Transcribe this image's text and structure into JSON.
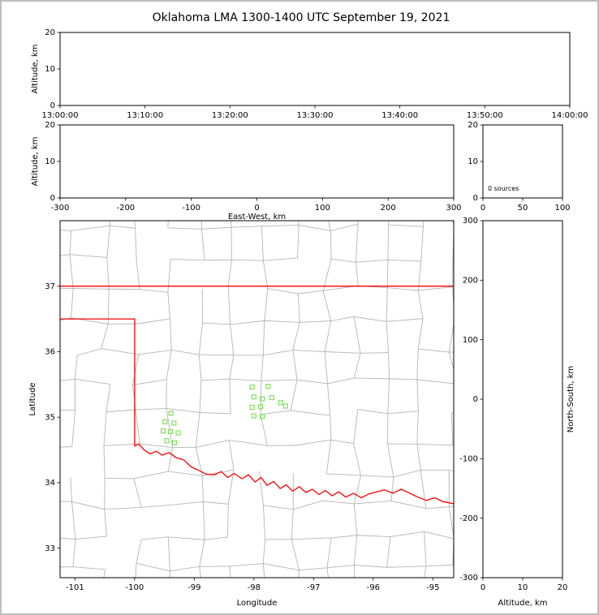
{
  "title": "Oklahoma LMA 1300-1400 UTC September 19, 2021",
  "colors": {
    "state_border_red": "#ff0000",
    "county_gray": "#b5b5b5",
    "station_green": "#82e060",
    "axes_black": "#000000",
    "frame_gray": "#bdbdbd"
  },
  "panels": {
    "time_height": {
      "x_ticks": [
        "13:00:00",
        "13:10:00",
        "13:20:00",
        "13:30:00",
        "13:40:00",
        "13:50:00",
        "14:00:00"
      ],
      "y_ticks": [
        0,
        10,
        20
      ],
      "y_label": "Altitude, km"
    },
    "ew_height": {
      "x_ticks": [
        -300,
        -200,
        -100,
        0,
        100,
        200,
        300
      ],
      "x_label": "East-West, km",
      "y_ticks": [
        0,
        10,
        20
      ],
      "y_label": "Altitude, km"
    },
    "histogram": {
      "x_ticks": [
        0,
        50,
        100
      ],
      "y_ticks": [
        0,
        10,
        20
      ],
      "annotation": "0 sources"
    },
    "plan_view": {
      "x_ticks": [
        -101,
        -100,
        -99,
        -98,
        -97,
        -96,
        -95
      ],
      "x_label": "Longitude",
      "y_ticks": [
        33,
        34,
        35,
        36,
        37
      ],
      "y_label": "Latitude",
      "lon_range": [
        -101.25,
        -94.65
      ],
      "lat_range": [
        32.55,
        38.0
      ]
    },
    "ns_height": {
      "x_ticks": [
        0,
        10,
        20
      ],
      "x_label": "Altitude, km",
      "y_ticks": [
        -300,
        -200,
        -100,
        0,
        100,
        200,
        300
      ],
      "y_label": "North-South, km"
    }
  },
  "chart_data": [
    {
      "type": "scatter",
      "panel": "time_height",
      "x_range": [
        "13:00:00",
        "14:00:00"
      ],
      "ylim": [
        0,
        20
      ],
      "points": [],
      "note": "empty panel - no sources plotted"
    },
    {
      "type": "scatter",
      "panel": "ew_height",
      "x_range": [
        -300,
        300
      ],
      "ylim": [
        0,
        20
      ],
      "points": [],
      "note": "empty panel - no sources plotted"
    },
    {
      "type": "bar",
      "panel": "histogram",
      "x_range": [
        0,
        100
      ],
      "ylim": [
        0,
        20
      ],
      "values": [],
      "annotation": "0 sources"
    },
    {
      "type": "scatter",
      "panel": "plan_view",
      "xlabel": "Longitude",
      "ylabel": "Latitude",
      "xlim": [
        -101.25,
        -94.65
      ],
      "ylim": [
        32.55,
        38.0
      ],
      "series": [
        {
          "name": "lma-station-locations",
          "marker": "open-square",
          "color": "#82e060",
          "points": [
            [
              -98.03,
              35.46
            ],
            [
              -97.76,
              35.47
            ],
            [
              -98.0,
              35.31
            ],
            [
              -97.86,
              35.28
            ],
            [
              -97.7,
              35.3
            ],
            [
              -98.03,
              35.15
            ],
            [
              -97.89,
              35.16
            ],
            [
              -98.0,
              35.02
            ],
            [
              -97.86,
              35.01
            ],
            [
              -97.55,
              35.22
            ],
            [
              -97.47,
              35.17
            ],
            [
              -99.39,
              35.06
            ],
            [
              -99.49,
              34.93
            ],
            [
              -99.34,
              34.91
            ],
            [
              -99.52,
              34.79
            ],
            [
              -99.4,
              34.78
            ],
            [
              -99.27,
              34.76
            ],
            [
              -99.46,
              34.64
            ],
            [
              -99.33,
              34.61
            ]
          ]
        }
      ],
      "overlays": {
        "county_borders": {
          "color": "#b5b5b5",
          "style": "procedural-grid"
        },
        "state_border": {
          "color": "#ff0000",
          "paths": {
            "north_border": [
              [
                -101.25,
                37.0
              ],
              [
                -94.65,
                37.0
              ]
            ],
            "panhandle_west": [
              [
                -101.25,
                36.5
              ],
              [
                -100.0,
                36.5
              ],
              [
                -100.0,
                34.56
              ]
            ],
            "red_river_south": [
              [
                -100.0,
                34.56
              ],
              [
                -99.93,
                34.59
              ],
              [
                -99.84,
                34.5
              ],
              [
                -99.74,
                34.44
              ],
              [
                -99.64,
                34.48
              ],
              [
                -99.54,
                34.42
              ],
              [
                -99.42,
                34.46
              ],
              [
                -99.3,
                34.38
              ],
              [
                -99.18,
                34.35
              ],
              [
                -99.05,
                34.24
              ],
              [
                -98.93,
                34.19
              ],
              [
                -98.8,
                34.13
              ],
              [
                -98.66,
                34.12
              ],
              [
                -98.55,
                34.17
              ],
              [
                -98.44,
                34.08
              ],
              [
                -98.33,
                34.14
              ],
              [
                -98.2,
                34.06
              ],
              [
                -98.09,
                34.12
              ],
              [
                -97.98,
                34.01
              ],
              [
                -97.88,
                34.08
              ],
              [
                -97.78,
                33.96
              ],
              [
                -97.67,
                34.02
              ],
              [
                -97.56,
                33.91
              ],
              [
                -97.46,
                33.97
              ],
              [
                -97.35,
                33.87
              ],
              [
                -97.24,
                33.94
              ],
              [
                -97.13,
                33.85
              ],
              [
                -97.02,
                33.9
              ],
              [
                -96.91,
                33.82
              ],
              [
                -96.8,
                33.88
              ],
              [
                -96.69,
                33.8
              ],
              [
                -96.58,
                33.86
              ],
              [
                -96.46,
                33.78
              ],
              [
                -96.33,
                33.84
              ],
              [
                -96.2,
                33.77
              ],
              [
                -96.07,
                33.83
              ],
              [
                -95.94,
                33.86
              ],
              [
                -95.81,
                33.89
              ],
              [
                -95.67,
                33.84
              ],
              [
                -95.53,
                33.9
              ],
              [
                -95.39,
                33.84
              ],
              [
                -95.25,
                33.78
              ],
              [
                -95.11,
                33.73
              ],
              [
                -94.97,
                33.77
              ],
              [
                -94.83,
                33.71
              ],
              [
                -94.65,
                33.68
              ]
            ]
          }
        }
      }
    },
    {
      "type": "scatter",
      "panel": "ns_height",
      "x_range": [
        0,
        20
      ],
      "ylim": [
        -300,
        300
      ],
      "points": [],
      "note": "empty panel - no sources plotted"
    }
  ]
}
